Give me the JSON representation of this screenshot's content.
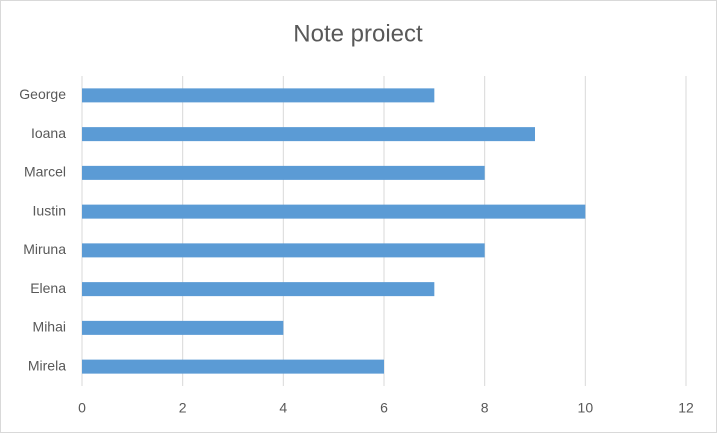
{
  "chart_data": {
    "type": "bar",
    "orientation": "horizontal",
    "title": "Note proiect",
    "categories": [
      "George",
      "Ioana",
      "Marcel",
      "Iustin",
      "Miruna",
      "Elena",
      "Mihai",
      "Mirela"
    ],
    "values": [
      7,
      9,
      8,
      10,
      8,
      7,
      4,
      6
    ],
    "color": "#5b9bd5",
    "xlim": [
      0,
      12
    ],
    "xticks": [
      0,
      2,
      4,
      6,
      8,
      10,
      12
    ],
    "grid": true
  }
}
